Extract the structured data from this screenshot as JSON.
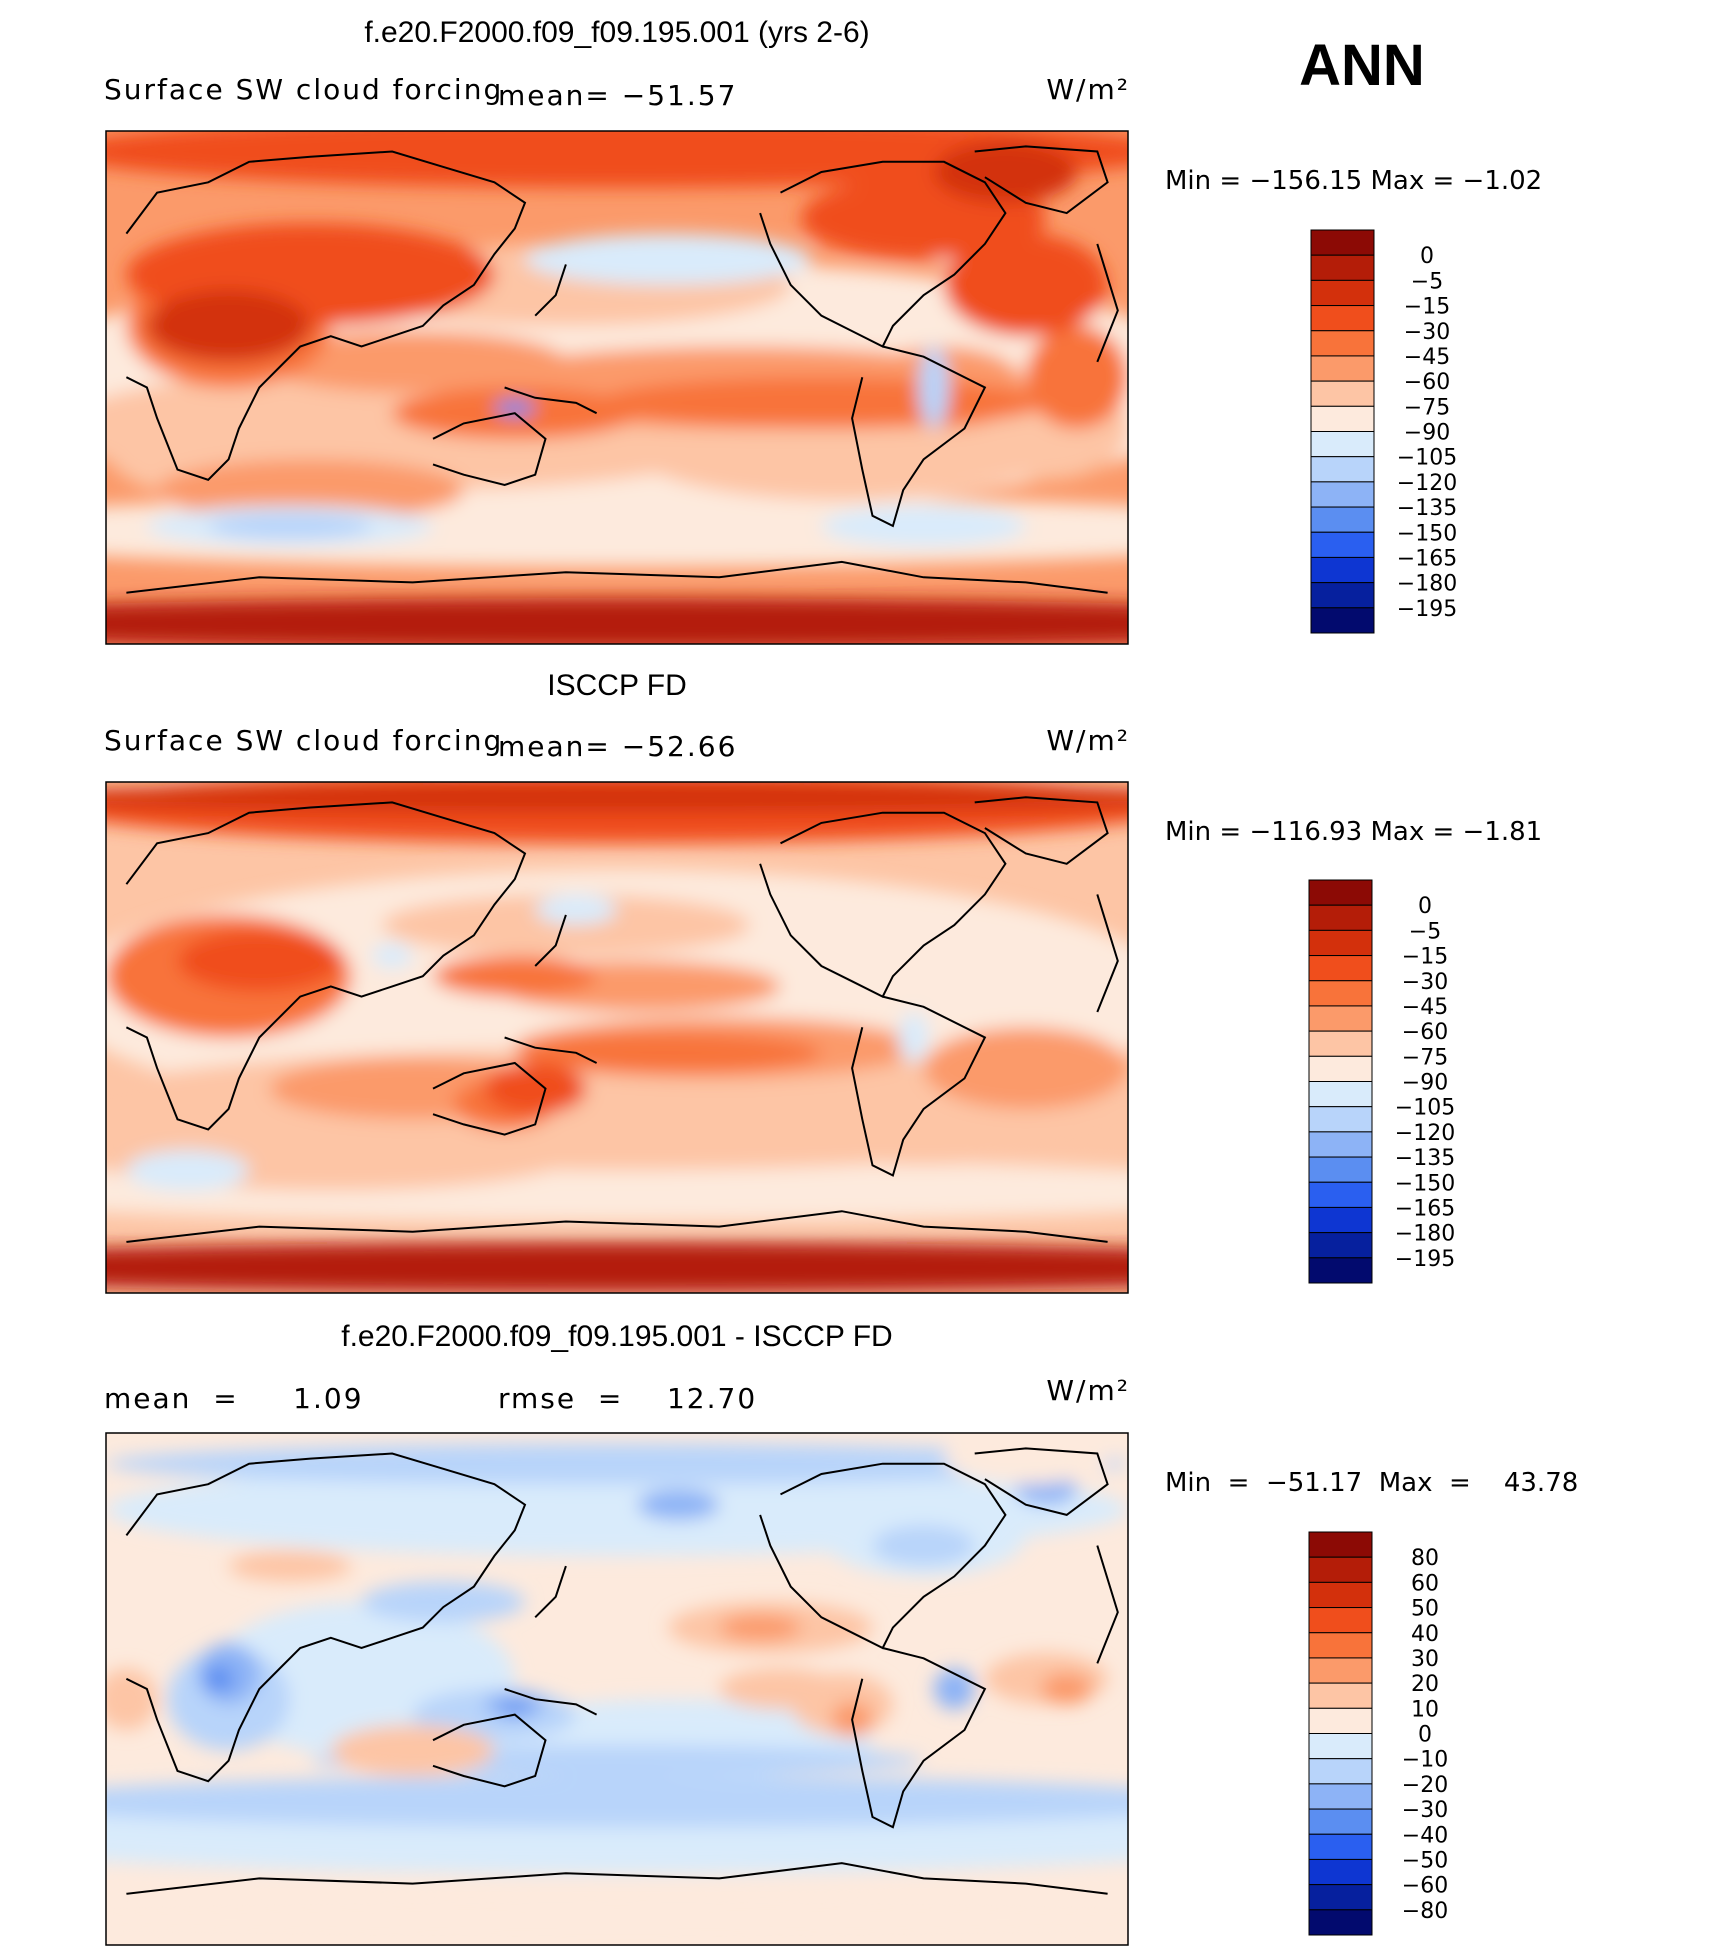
{
  "season": "ANN",
  "chart_data": [
    {
      "type": "heatmap",
      "title": "f.e20.F2000.f09_f09.195.001 (yrs 2-6)",
      "subtitle_left": "Surface SW cloud forcing",
      "stat": "mean=  −51.57",
      "units": "W/m²",
      "minmax": "Min  =  −156.15  Max  =    −1.02",
      "colorbar": {
        "labels": [
          "0",
          "−5",
          "−15",
          "−30",
          "−45",
          "−60",
          "−75",
          "−90",
          "−105",
          "−120",
          "−135",
          "−150",
          "−165",
          "−180",
          "−195"
        ],
        "colors": [
          "#8c0a05",
          "#b41d08",
          "#d3300c",
          "#f04e1c",
          "#f8733a",
          "#fb9a6a",
          "#fdc5a5",
          "#fdeadd",
          "#d9ebfb",
          "#b8d4fa",
          "#8db3f6",
          "#5b8ef1",
          "#2a5ff0",
          "#0e36d2",
          "#06209e",
          "#020a6e"
        ]
      }
    },
    {
      "type": "heatmap",
      "title": "ISCCP FD",
      "subtitle_left": "Surface SW cloud forcing",
      "stat": "mean=  −52.66",
      "units": "W/m²",
      "minmax": "Min  =  −116.93  Max  =    −1.81",
      "colorbar": {
        "labels": [
          "0",
          "−5",
          "−15",
          "−30",
          "−45",
          "−60",
          "−75",
          "−90",
          "−105",
          "−120",
          "−135",
          "−150",
          "−165",
          "−180",
          "−195"
        ],
        "colors": [
          "#8c0a05",
          "#b41d08",
          "#d3300c",
          "#f04e1c",
          "#f8733a",
          "#fb9a6a",
          "#fdc5a5",
          "#fdeadd",
          "#d9ebfb",
          "#b8d4fa",
          "#8db3f6",
          "#5b8ef1",
          "#2a5ff0",
          "#0e36d2",
          "#06209e",
          "#020a6e"
        ]
      }
    },
    {
      "type": "heatmap",
      "title": "f.e20.F2000.f09_f09.195.001 - ISCCP FD",
      "stat_left": "mean  =     1.09",
      "stat": "rmse  =    12.70",
      "units": "W/m²",
      "minmax": "Min  =  −51.17  Max  =    43.78",
      "colorbar": {
        "labels": [
          "80",
          "60",
          "50",
          "40",
          "30",
          "20",
          "10",
          "0",
          "−10",
          "−20",
          "−30",
          "−40",
          "−50",
          "−60",
          "−80"
        ],
        "colors": [
          "#8c0a05",
          "#b41d08",
          "#d3300c",
          "#f04e1c",
          "#f8733a",
          "#fb9a6a",
          "#fdc5a5",
          "#fdeadd",
          "#d9ebfb",
          "#b8d4fa",
          "#8db3f6",
          "#5b8ef1",
          "#2a5ff0",
          "#0e36d2",
          "#06209e",
          "#020a6e"
        ]
      }
    }
  ]
}
